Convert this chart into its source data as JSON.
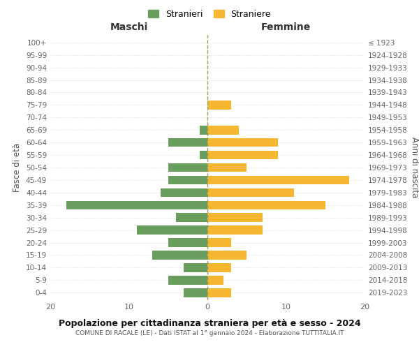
{
  "age_groups": [
    "0-4",
    "5-9",
    "10-14",
    "15-19",
    "20-24",
    "25-29",
    "30-34",
    "35-39",
    "40-44",
    "45-49",
    "50-54",
    "55-59",
    "60-64",
    "65-69",
    "70-74",
    "75-79",
    "80-84",
    "85-89",
    "90-94",
    "95-99",
    "100+"
  ],
  "birth_years": [
    "2019-2023",
    "2014-2018",
    "2009-2013",
    "2004-2008",
    "1999-2003",
    "1994-1998",
    "1989-1993",
    "1984-1988",
    "1979-1983",
    "1974-1978",
    "1969-1973",
    "1964-1968",
    "1959-1963",
    "1954-1958",
    "1949-1953",
    "1944-1948",
    "1939-1943",
    "1934-1938",
    "1929-1933",
    "1924-1928",
    "≤ 1923"
  ],
  "males": [
    3,
    5,
    3,
    7,
    5,
    9,
    4,
    18,
    6,
    5,
    5,
    1,
    5,
    1,
    0,
    0,
    0,
    0,
    0,
    0,
    0
  ],
  "females": [
    3,
    2,
    3,
    5,
    3,
    7,
    7,
    15,
    11,
    18,
    5,
    9,
    9,
    4,
    0,
    3,
    0,
    0,
    0,
    0,
    0
  ],
  "male_color": "#6a9e5f",
  "female_color": "#f5b731",
  "title": "Popolazione per cittadinanza straniera per età e sesso - 2024",
  "subtitle": "COMUNE DI RACALE (LE) - Dati ISTAT al 1° gennaio 2024 - Elaborazione TUTTITALIA.IT",
  "ylabel_left": "Fasce di età",
  "ylabel_right": "Anni di nascita",
  "xlabel_left": "Maschi",
  "xlabel_right": "Femmine",
  "legend_male": "Stranieri",
  "legend_female": "Straniere",
  "xlim": 20,
  "background_color": "#ffffff",
  "grid_color": "#cccccc"
}
